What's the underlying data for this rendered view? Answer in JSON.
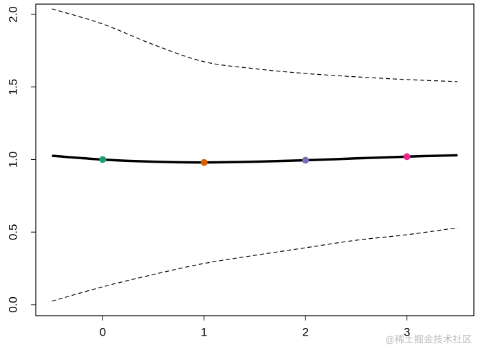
{
  "chart_data": {
    "type": "line",
    "xlim": [
      -0.66,
      3.66
    ],
    "ylim": [
      -0.076,
      2.071
    ],
    "xticks": [
      0,
      1,
      2,
      3
    ],
    "yticks": [
      {
        "value": 0,
        "label": "0.0"
      },
      0.5,
      {
        "value": 1,
        "label": "1.0"
      },
      1.5,
      {
        "value": 2,
        "label": "2.0"
      }
    ],
    "series": [
      {
        "color": "#000000",
        "dash": false,
        "width": 3.5,
        "x": [
          -0.5,
          0,
          0.5,
          1,
          1.5,
          2,
          2.5,
          3,
          3.5
        ],
        "values": [
          1.026,
          1.0,
          0.985,
          0.98,
          0.985,
          0.995,
          1.008,
          1.02,
          1.03
        ]
      },
      {
        "color": "#000000",
        "dash": true,
        "width": 1.2,
        "x": [
          -0.5,
          0,
          0.5,
          1,
          1.5,
          2,
          2.5,
          3,
          3.5
        ],
        "values": [
          2.038,
          1.934,
          1.792,
          1.674,
          1.626,
          1.593,
          1.57,
          1.551,
          1.537
        ]
      },
      {
        "color": "#000000",
        "dash": true,
        "width": 1.2,
        "x": [
          -0.5,
          0,
          0.5,
          1,
          1.5,
          2,
          2.5,
          3,
          3.5
        ],
        "values": [
          0.024,
          0.123,
          0.208,
          0.284,
          0.34,
          0.392,
          0.444,
          0.482,
          0.53
        ]
      }
    ],
    "points": {
      "x": [
        0,
        1,
        2,
        3
      ],
      "values": [
        1.0,
        0.98,
        0.995,
        1.02
      ],
      "colors": [
        "#1B9E77",
        "#D95F02",
        "#7570B3",
        "#E7298A"
      ]
    },
    "watermark": "@稀土掘金技术社区"
  }
}
